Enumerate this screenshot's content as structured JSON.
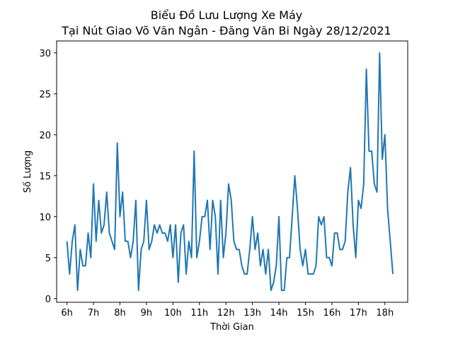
{
  "chart_data": {
    "type": "line",
    "title_line1": "Biểu Đồ Lưu Lượng Xe Máy",
    "title_line2": "Tại Nút Giao Võ Văn Ngân - Đăng Văn Bi Ngày 28/12/2021",
    "xlabel": "Thời Gian",
    "ylabel": "Số Lượng",
    "xlim": [
      5.61,
      18.86
    ],
    "ylim": [
      -0.45,
      31.45
    ],
    "grid": false,
    "x_ticks": [
      6,
      7,
      8,
      9,
      10,
      11,
      12,
      13,
      14,
      15,
      16,
      17,
      18
    ],
    "x_tick_labels": [
      "6h",
      "7h",
      "8h",
      "9h",
      "10h",
      "11h",
      "12h",
      "13h",
      "14h",
      "15h",
      "16h",
      "17h",
      "18h"
    ],
    "y_ticks": [
      0,
      5,
      10,
      15,
      20,
      25,
      30
    ],
    "y_tick_labels": [
      "0",
      "5",
      "10",
      "15",
      "20",
      "25",
      "30"
    ],
    "line_color": "#1f77b4",
    "series": [
      {
        "x": [
          6.0,
          6.1,
          6.2,
          6.3,
          6.4,
          6.5,
          6.6,
          6.7,
          6.8,
          6.9,
          7.0,
          7.1,
          7.2,
          7.3,
          7.4,
          7.5,
          7.6,
          7.7,
          7.8,
          7.9,
          8.0,
          8.1,
          8.2,
          8.3,
          8.4,
          8.5,
          8.6,
          8.7,
          8.8,
          8.9,
          9.0,
          9.1,
          9.2,
          9.3,
          9.4,
          9.5,
          9.6,
          9.7,
          9.8,
          9.9,
          10.0,
          10.1,
          10.2,
          10.3,
          10.4,
          10.5,
          10.6,
          10.7,
          10.8,
          10.9,
          11.0,
          11.1,
          11.2,
          11.3,
          11.4,
          11.5,
          11.6,
          11.7,
          11.8,
          11.9,
          12.0,
          12.1,
          12.2,
          12.3,
          12.4,
          12.5,
          12.6,
          12.7,
          12.8,
          12.9,
          13.0,
          13.1,
          13.2,
          13.3,
          13.4,
          13.5,
          13.6,
          13.7,
          13.8,
          13.9,
          14.0,
          14.1,
          14.2,
          14.3,
          14.4,
          14.5,
          14.6,
          14.7,
          14.8,
          14.9,
          15.0,
          15.1,
          15.2,
          15.3,
          15.4,
          15.5,
          15.6,
          15.7,
          15.8,
          15.9,
          16.0,
          16.1,
          16.2,
          16.3,
          16.4,
          16.5,
          16.6,
          16.7,
          16.8,
          16.9,
          17.0,
          17.1,
          17.2,
          17.3,
          17.4,
          17.5,
          17.6,
          17.7,
          17.8,
          17.9,
          18.0,
          18.1,
          18.2,
          18.3
        ],
        "y": [
          7,
          3,
          7,
          9,
          1,
          6,
          4,
          4,
          8,
          5,
          14,
          7,
          12,
          8,
          9,
          13,
          8,
          7,
          6,
          19,
          10,
          13,
          7,
          7,
          5,
          7,
          12,
          1,
          6,
          7,
          12,
          6,
          7,
          9,
          8,
          9,
          8,
          8,
          7,
          9,
          5,
          9,
          2,
          8,
          9,
          3,
          7,
          5,
          18,
          5,
          7,
          10,
          10,
          12,
          6,
          12,
          10,
          3,
          12,
          5,
          8,
          14,
          12,
          7,
          6,
          6,
          4,
          3,
          3,
          6,
          10,
          6,
          8,
          4,
          6,
          3,
          6,
          1,
          2,
          4,
          10,
          1,
          1,
          5,
          5,
          10,
          15,
          11,
          6,
          4,
          6,
          3,
          3,
          3,
          4,
          10,
          9,
          10,
          5,
          5,
          4,
          8,
          8,
          6,
          6,
          7,
          13,
          16,
          9,
          5,
          12,
          11,
          14,
          28,
          18,
          18,
          14,
          13,
          30,
          17,
          20,
          11,
          7,
          3
        ]
      }
    ]
  }
}
